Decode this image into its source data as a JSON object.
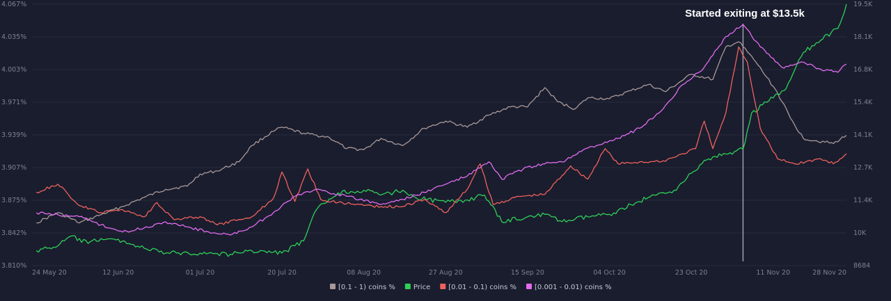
{
  "chart_data": {
    "type": "line",
    "annotation": {
      "text": "Started exiting at $13.5k",
      "x_day": 164
    },
    "x_ticks": [
      "24 May 20",
      "12 Jun 20",
      "01 Jul 20",
      "20 Jul 20",
      "08 Aug 20",
      "27 Aug 20",
      "15 Sep 20",
      "04 Oct 20",
      "23 Oct 20",
      "11 Nov 20",
      "28 Nov 20"
    ],
    "x_tick_days": [
      0,
      19,
      38,
      57,
      76,
      95,
      114,
      133,
      152,
      171,
      188
    ],
    "x_range_days": [
      -1,
      188
    ],
    "y_left_ticks": [
      "4.067%",
      "4.035%",
      "4.003%",
      "3.971%",
      "3.939%",
      "3.907%",
      "3.875%",
      "3.842%",
      "3.810%"
    ],
    "y_left_range": [
      3.81,
      4.067
    ],
    "y_right_ticks": [
      "19.5K",
      "18.1K",
      "16.8K",
      "15.4K",
      "14.1K",
      "12.7K",
      "11.4K",
      "10K",
      "8684"
    ],
    "y_right_range": [
      8684,
      19500
    ],
    "legend": [
      {
        "label": "[0.1 - 1) coins %",
        "color": "#a89a9a"
      },
      {
        "label": "Price",
        "color": "#2ed158"
      },
      {
        "label": "[0.01 - 0.1) coins %",
        "color": "#f0625d"
      },
      {
        "label": "[0.001 - 0.01) coins %",
        "color": "#e26cf0"
      }
    ],
    "series": [
      {
        "name": "[0.1 - 1) coins %",
        "color": "#a89a9a",
        "axis": "left",
        "points": [
          [
            0,
            3.852
          ],
          [
            5,
            3.862
          ],
          [
            10,
            3.852
          ],
          [
            15,
            3.86
          ],
          [
            20,
            3.868
          ],
          [
            25,
            3.877
          ],
          [
            30,
            3.885
          ],
          [
            35,
            3.888
          ],
          [
            38,
            3.9
          ],
          [
            42,
            3.903
          ],
          [
            47,
            3.912
          ],
          [
            50,
            3.928
          ],
          [
            55,
            3.942
          ],
          [
            57,
            3.946
          ],
          [
            62,
            3.94
          ],
          [
            68,
            3.936
          ],
          [
            72,
            3.925
          ],
          [
            76,
            3.924
          ],
          [
            80,
            3.935
          ],
          [
            85,
            3.928
          ],
          [
            90,
            3.945
          ],
          [
            95,
            3.952
          ],
          [
            100,
            3.946
          ],
          [
            105,
            3.958
          ],
          [
            110,
            3.966
          ],
          [
            114,
            3.966
          ],
          [
            118,
            3.985
          ],
          [
            121,
            3.971
          ],
          [
            125,
            3.964
          ],
          [
            128,
            3.975
          ],
          [
            133,
            3.974
          ],
          [
            138,
            3.982
          ],
          [
            142,
            3.988
          ],
          [
            146,
            3.981
          ],
          [
            152,
            3.998
          ],
          [
            157,
            3.993
          ],
          [
            160,
            4.025
          ],
          [
            163,
            4.03
          ],
          [
            167,
            4.01
          ],
          [
            172,
            3.98
          ],
          [
            175,
            3.955
          ],
          [
            178,
            3.935
          ],
          [
            185,
            3.93
          ],
          [
            188,
            3.938
          ]
        ]
      },
      {
        "name": "Price",
        "color": "#2ed158",
        "axis": "right",
        "points": [
          [
            0,
            9300
          ],
          [
            5,
            9500
          ],
          [
            8,
            9900
          ],
          [
            12,
            9600
          ],
          [
            15,
            9800
          ],
          [
            20,
            9700
          ],
          [
            25,
            9400
          ],
          [
            30,
            9200
          ],
          [
            38,
            9200
          ],
          [
            45,
            9150
          ],
          [
            50,
            9300
          ],
          [
            57,
            9200
          ],
          [
            62,
            9700
          ],
          [
            65,
            11000
          ],
          [
            70,
            11700
          ],
          [
            76,
            11800
          ],
          [
            80,
            11600
          ],
          [
            85,
            11800
          ],
          [
            88,
            11500
          ],
          [
            95,
            11300
          ],
          [
            100,
            11400
          ],
          [
            104,
            11600
          ],
          [
            108,
            10500
          ],
          [
            114,
            10700
          ],
          [
            118,
            10800
          ],
          [
            122,
            10500
          ],
          [
            128,
            10700
          ],
          [
            133,
            10800
          ],
          [
            138,
            11200
          ],
          [
            142,
            11500
          ],
          [
            148,
            11800
          ],
          [
            152,
            12500
          ],
          [
            156,
            13100
          ],
          [
            160,
            13300
          ],
          [
            164,
            13500
          ],
          [
            166,
            15000
          ],
          [
            170,
            15500
          ],
          [
            174,
            16000
          ],
          [
            178,
            17500
          ],
          [
            182,
            18000
          ],
          [
            186,
            18500
          ],
          [
            188,
            19500
          ]
        ]
      },
      {
        "name": "[0.01 - 0.1) coins %",
        "color": "#f0625d",
        "axis": "left",
        "points": [
          [
            0,
            3.882
          ],
          [
            5,
            3.89
          ],
          [
            10,
            3.869
          ],
          [
            15,
            3.862
          ],
          [
            20,
            3.865
          ],
          [
            25,
            3.858
          ],
          [
            28,
            3.872
          ],
          [
            32,
            3.855
          ],
          [
            38,
            3.858
          ],
          [
            42,
            3.85
          ],
          [
            50,
            3.858
          ],
          [
            55,
            3.876
          ],
          [
            57,
            3.902
          ],
          [
            60,
            3.873
          ],
          [
            63,
            3.905
          ],
          [
            66,
            3.875
          ],
          [
            70,
            3.872
          ],
          [
            75,
            3.87
          ],
          [
            80,
            3.868
          ],
          [
            85,
            3.868
          ],
          [
            90,
            3.875
          ],
          [
            95,
            3.862
          ],
          [
            100,
            3.885
          ],
          [
            103,
            3.91
          ],
          [
            106,
            3.87
          ],
          [
            112,
            3.878
          ],
          [
            118,
            3.88
          ],
          [
            124,
            3.908
          ],
          [
            128,
            3.895
          ],
          [
            132,
            3.925
          ],
          [
            135,
            3.91
          ],
          [
            140,
            3.912
          ],
          [
            145,
            3.912
          ],
          [
            150,
            3.92
          ],
          [
            153,
            3.925
          ],
          [
            155,
            3.952
          ],
          [
            157,
            3.925
          ],
          [
            160,
            3.96
          ],
          [
            163,
            4.025
          ],
          [
            165,
            4.01
          ],
          [
            168,
            3.945
          ],
          [
            172,
            3.915
          ],
          [
            176,
            3.91
          ],
          [
            182,
            3.915
          ],
          [
            185,
            3.91
          ],
          [
            188,
            3.92
          ]
        ]
      },
      {
        "name": "[0.001 - 0.01) coins %",
        "color": "#e26cf0",
        "axis": "left",
        "points": [
          [
            0,
            3.862
          ],
          [
            5,
            3.86
          ],
          [
            10,
            3.858
          ],
          [
            15,
            3.85
          ],
          [
            20,
            3.843
          ],
          [
            25,
            3.847
          ],
          [
            30,
            3.853
          ],
          [
            35,
            3.848
          ],
          [
            40,
            3.843
          ],
          [
            45,
            3.84
          ],
          [
            50,
            3.848
          ],
          [
            55,
            3.862
          ],
          [
            60,
            3.878
          ],
          [
            65,
            3.885
          ],
          [
            70,
            3.88
          ],
          [
            75,
            3.875
          ],
          [
            80,
            3.87
          ],
          [
            85,
            3.875
          ],
          [
            90,
            3.882
          ],
          [
            95,
            3.89
          ],
          [
            100,
            3.898
          ],
          [
            105,
            3.912
          ],
          [
            108,
            3.895
          ],
          [
            113,
            3.905
          ],
          [
            118,
            3.91
          ],
          [
            122,
            3.912
          ],
          [
            126,
            3.922
          ],
          [
            130,
            3.928
          ],
          [
            135,
            3.935
          ],
          [
            140,
            3.945
          ],
          [
            145,
            3.962
          ],
          [
            150,
            3.988
          ],
          [
            155,
            4.005
          ],
          [
            160,
            4.035
          ],
          [
            164,
            4.047
          ],
          [
            168,
            4.025
          ],
          [
            173,
            4.005
          ],
          [
            178,
            4.01
          ],
          [
            182,
            4.003
          ],
          [
            186,
            4.0
          ],
          [
            188,
            4.008
          ]
        ]
      }
    ]
  }
}
